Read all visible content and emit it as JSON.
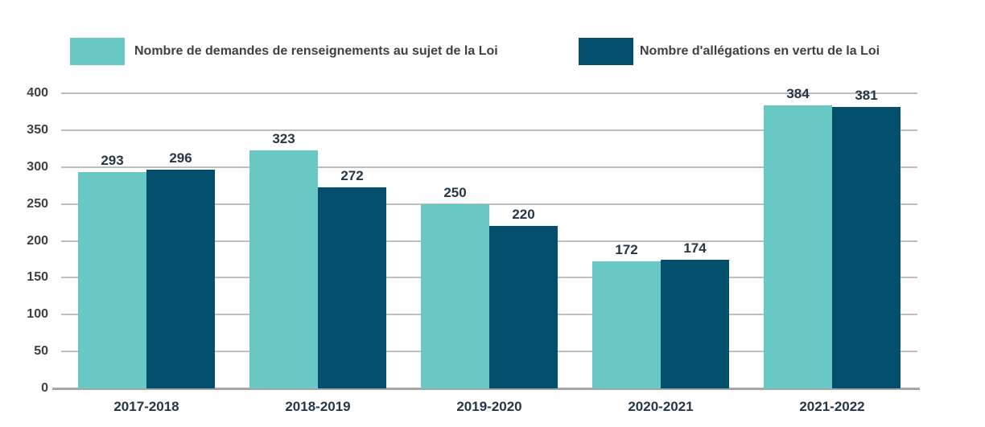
{
  "legend": {
    "items": [
      {
        "label": "Nombre de demandes de renseignements au sujet de la Loi",
        "color": "#68C8C4"
      },
      {
        "label": "Nombre d'allégations en vertu de la Loi",
        "color": "#03506E"
      }
    ]
  },
  "chart_data": {
    "type": "bar",
    "title": "",
    "xlabel": "",
    "ylabel": "",
    "categories": [
      "2017-2018",
      "2018-2019",
      "2019-2020",
      "2020-2021",
      "2021-2022"
    ],
    "series": [
      {
        "name": "Nombre de demandes de renseignements au sujet de la Loi",
        "color": "#68C8C4",
        "values": [
          293,
          323,
          250,
          172,
          384
        ]
      },
      {
        "name": "Nombre d'allégations en vertu de la Loi",
        "color": "#03506E",
        "values": [
          296,
          272,
          220,
          174,
          381
        ]
      }
    ],
    "ylim": [
      0,
      400
    ],
    "ytick_step": 50,
    "yticks": [
      "0",
      "50",
      "100",
      "150",
      "200",
      "250",
      "300",
      "350",
      "400"
    ],
    "grid": true,
    "data_labels": true,
    "legend_position": "top"
  },
  "colors": {
    "gridline": "#BFBFBF",
    "axis_line": "#A6A6A6",
    "data_label": "#253746",
    "tick_label": "#404040",
    "legend_text": "#404040",
    "background": "#FFFFFF"
  }
}
